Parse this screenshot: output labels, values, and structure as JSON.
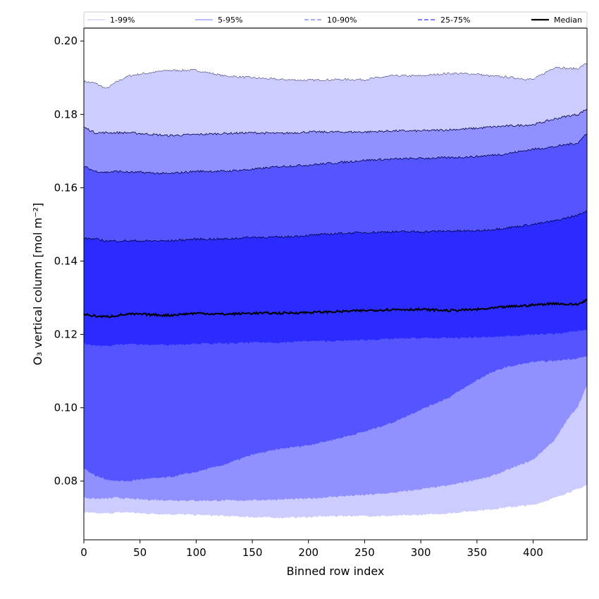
{
  "chart_data": {
    "type": "area",
    "title": "",
    "xlabel": "Binned row index",
    "ylabel": "O₃ vertical column [mol m⁻²]",
    "xlim": [
      0,
      448
    ],
    "ylim": [
      0.064,
      0.2035
    ],
    "x_ticks": [
      0,
      50,
      100,
      150,
      200,
      250,
      300,
      350,
      400
    ],
    "y_ticks": [
      0.08,
      0.1,
      0.12,
      0.14,
      0.16,
      0.18,
      0.2
    ],
    "y_tick_labels": [
      "0.08",
      "0.10",
      "0.12",
      "0.14",
      "0.16",
      "0.18",
      "0.20"
    ],
    "grid": false,
    "legend_position": "top, across plot",
    "x": [
      0,
      10,
      20,
      30,
      40,
      50,
      75,
      100,
      125,
      150,
      175,
      200,
      225,
      250,
      275,
      300,
      325,
      350,
      360,
      375,
      400,
      420,
      430,
      440,
      448
    ],
    "bands": [
      {
        "name": "1-99%",
        "color": "#ccccff",
        "lower": [
          0.0715,
          0.0712,
          0.0712,
          0.0714,
          0.0715,
          0.0712,
          0.071,
          0.0708,
          0.0705,
          0.0702,
          0.07,
          0.0702,
          0.0705,
          0.0705,
          0.0705,
          0.0708,
          0.0712,
          0.072,
          0.0722,
          0.0728,
          0.0735,
          0.0755,
          0.0768,
          0.0778,
          0.079
        ],
        "upper": [
          0.189,
          0.1885,
          0.187,
          0.189,
          0.1905,
          0.191,
          0.192,
          0.192,
          0.1905,
          0.19,
          0.1895,
          0.1893,
          0.1895,
          0.1895,
          0.1905,
          0.1905,
          0.1912,
          0.191,
          0.1905,
          0.1902,
          0.1895,
          0.193,
          0.1925,
          0.1925,
          0.194
        ]
      },
      {
        "name": "5-95%",
        "color": "#9090ff",
        "lower": [
          0.0755,
          0.0752,
          0.0752,
          0.0755,
          0.0752,
          0.075,
          0.0748,
          0.0747,
          0.0747,
          0.0748,
          0.075,
          0.0752,
          0.0758,
          0.0762,
          0.0768,
          0.0778,
          0.0788,
          0.0805,
          0.081,
          0.0828,
          0.0858,
          0.0915,
          0.0965,
          0.1005,
          0.106
        ],
        "upper": [
          0.1765,
          0.175,
          0.175,
          0.175,
          0.175,
          0.1748,
          0.1742,
          0.1745,
          0.1748,
          0.175,
          0.1748,
          0.1752,
          0.1752,
          0.1752,
          0.1755,
          0.1755,
          0.1758,
          0.1762,
          0.1765,
          0.1768,
          0.1772,
          0.1788,
          0.1795,
          0.18,
          0.1815
        ]
      },
      {
        "name": "10-90%",
        "color": "#5555ff",
        "lower": [
          0.0835,
          0.0815,
          0.0805,
          0.08,
          0.08,
          0.0805,
          0.081,
          0.0825,
          0.0845,
          0.0872,
          0.0888,
          0.0898,
          0.0915,
          0.0935,
          0.096,
          0.0995,
          0.1028,
          0.1075,
          0.1092,
          0.111,
          0.1125,
          0.1128,
          0.1132,
          0.1135,
          0.114
        ],
        "upper": [
          0.1658,
          0.1645,
          0.1642,
          0.1645,
          0.1642,
          0.1642,
          0.1638,
          0.1645,
          0.1645,
          0.165,
          0.1658,
          0.1662,
          0.1668,
          0.1675,
          0.1678,
          0.168,
          0.1682,
          0.1685,
          0.1688,
          0.1692,
          0.1705,
          0.1712,
          0.1718,
          0.1722,
          0.175
        ]
      },
      {
        "name": "25-75%",
        "color": "#2b2bff",
        "lower": [
          0.1175,
          0.117,
          0.1168,
          0.1172,
          0.1175,
          0.1172,
          0.1172,
          0.1175,
          0.1175,
          0.1178,
          0.1178,
          0.1182,
          0.1182,
          0.1185,
          0.1188,
          0.119,
          0.119,
          0.1192,
          0.1192,
          0.1195,
          0.12,
          0.1202,
          0.1205,
          0.121,
          0.1212
        ],
        "upper": [
          0.1462,
          0.146,
          0.1455,
          0.1455,
          0.1455,
          0.1455,
          0.1455,
          0.146,
          0.146,
          0.1465,
          0.1465,
          0.147,
          0.1475,
          0.1478,
          0.148,
          0.148,
          0.1482,
          0.1482,
          0.1485,
          0.149,
          0.15,
          0.151,
          0.1518,
          0.1525,
          0.1538
        ]
      }
    ],
    "series": [
      {
        "name": "Median",
        "color": "#000000",
        "values": [
          0.1255,
          0.125,
          0.1248,
          0.1252,
          0.1255,
          0.1255,
          0.1252,
          0.1258,
          0.1255,
          0.1258,
          0.1258,
          0.126,
          0.1262,
          0.1265,
          0.1268,
          0.1268,
          0.1265,
          0.1268,
          0.127,
          0.1275,
          0.128,
          0.1285,
          0.1282,
          0.1282,
          0.1295
        ]
      }
    ],
    "legend": [
      {
        "label": "1-99%",
        "color": "#ccccff",
        "dash": "0"
      },
      {
        "label": "5-95%",
        "color": "#9090ff",
        "dash": "0"
      },
      {
        "label": "10-90%",
        "color": "#7777ff",
        "dash": "6,3"
      },
      {
        "label": "25-75%",
        "color": "#3333ff",
        "dash": "6,3"
      },
      {
        "label": "Median",
        "color": "#000000",
        "dash": "0"
      }
    ]
  }
}
